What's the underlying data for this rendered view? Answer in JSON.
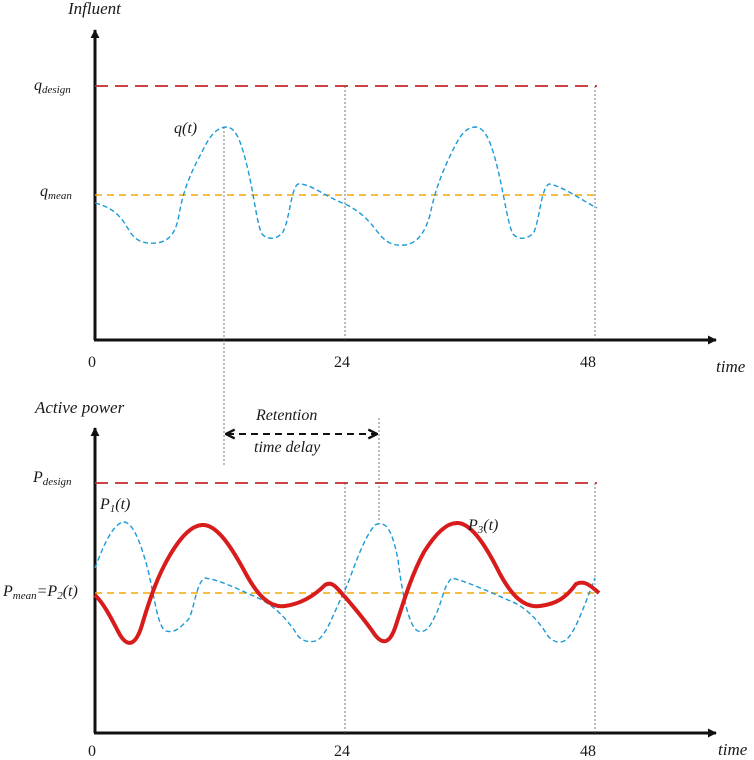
{
  "top_panel": {
    "y_title": "Influent",
    "x_title": "time",
    "ticks": [
      "0",
      "24",
      "48"
    ],
    "q_design": {
      "base": "q",
      "sub": "design"
    },
    "q_mean": {
      "base": "q",
      "sub": "mean"
    },
    "curve_label": "q(t)"
  },
  "bottom_panel": {
    "y_title": "Active power",
    "x_title": "time",
    "ticks": [
      "0",
      "24",
      "48"
    ],
    "p_design": {
      "base": "P",
      "sub": "design"
    },
    "p_mean": {
      "base": "P",
      "sub": "mean",
      "rest": "=P",
      "sub2": "2",
      "tail": "(t)"
    },
    "p1": {
      "base": "P",
      "sub": "1",
      "tail": "(t)"
    },
    "p3": {
      "base": "P",
      "sub": "3",
      "tail": "(t)"
    },
    "retention_line1": "Retention",
    "retention_line2": "time delay"
  },
  "colors": {
    "design_line": "#c62828",
    "mean_line": "#f5a800",
    "influent_curve": "#1a9ad6",
    "power_curve": "#d81c1c",
    "axis": "#111111",
    "guide": "#555555"
  },
  "icons": [
    "arrow-head-icon"
  ]
}
